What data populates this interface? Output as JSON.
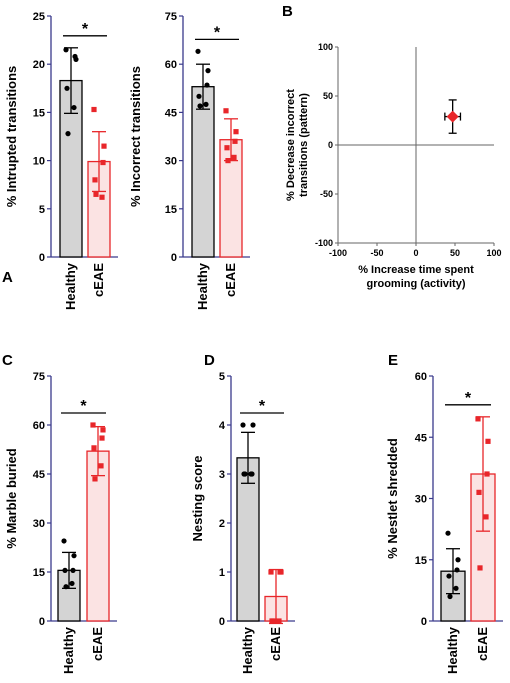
{
  "colors": {
    "healthy_fill": "#d4d4d4",
    "healthy_stroke": "#000000",
    "ceae_fill": "#fbe3e3",
    "ceae_stroke": "#e8262a",
    "axis": "#3a3a8c"
  },
  "chart_data": [
    {
      "id": "A1",
      "panel_letter": "A",
      "type": "bar",
      "ylabel": "% Intrupted transitions",
      "ylim": [
        0,
        25
      ],
      "yticks": [
        0,
        5,
        10,
        15,
        20,
        25
      ],
      "categories": [
        "Healthy",
        "cEAE"
      ],
      "values": [
        18.3,
        9.9
      ],
      "errors": [
        3.4,
        3.1
      ],
      "points": [
        [
          21.5,
          20.5,
          20.8,
          17.5,
          15.5,
          12.8
        ],
        [
          15.3,
          11.5,
          9.8,
          8.0,
          6.2,
          6.5
        ]
      ],
      "significance": "*"
    },
    {
      "id": "A2",
      "panel_letter": "",
      "type": "bar",
      "ylabel": "% Incorrect transitions",
      "ylim": [
        0,
        75
      ],
      "yticks": [
        0,
        15,
        30,
        45,
        60,
        75
      ],
      "categories": [
        "Healthy",
        "cEAE"
      ],
      "values": [
        53.0,
        36.5
      ],
      "errors": [
        7.0,
        6.5
      ],
      "points": [
        [
          64.0,
          58.0,
          53.5,
          50.0,
          47.5,
          47.0
        ],
        [
          45.5,
          39.0,
          36.0,
          34.0,
          31.0,
          30.0
        ]
      ],
      "significance": "*"
    },
    {
      "id": "B",
      "panel_letter": "B",
      "type": "scatter",
      "xlabel": "% Increase time spent grooming (activity)",
      "ylabel": "% Decrease incorrect transitions (pattern)",
      "xlim": [
        -100,
        100
      ],
      "ylim": [
        -100,
        100
      ],
      "xticks": [
        -100,
        -50,
        0,
        50,
        100
      ],
      "yticks": [
        -100,
        -50,
        0,
        50,
        100
      ],
      "point": {
        "x": 47,
        "y": 29,
        "xerr": 10,
        "yerr": 17
      }
    },
    {
      "id": "C",
      "panel_letter": "C",
      "type": "bar",
      "ylabel": "% Marble buried",
      "ylim": [
        0,
        75
      ],
      "yticks": [
        0,
        15,
        30,
        45,
        60,
        75
      ],
      "categories": [
        "Healthy",
        "cEAE"
      ],
      "values": [
        15.5,
        52.0
      ],
      "errors": [
        5.5,
        7.5
      ],
      "points": [
        [
          24.5,
          20.0,
          15.5,
          15.5,
          11.5,
          10.5
        ],
        [
          60.0,
          58.5,
          56.0,
          53.0,
          47.5,
          43.5
        ]
      ],
      "significance": "*"
    },
    {
      "id": "D",
      "panel_letter": "D",
      "type": "bar",
      "ylabel": "Nesting score",
      "ylim": [
        0,
        5
      ],
      "yticks": [
        0,
        1,
        2,
        3,
        4,
        5
      ],
      "categories": [
        "Healthy",
        "cEAE"
      ],
      "values": [
        3.33,
        0.5
      ],
      "errors": [
        0.52,
        0.55
      ],
      "points": [
        [
          4.0,
          4.0,
          3.0,
          3.0,
          3.0,
          3.0
        ],
        [
          1.0,
          1.0,
          1.0,
          0.0,
          0.0,
          0.0
        ]
      ],
      "significance": "*"
    },
    {
      "id": "E",
      "panel_letter": "E",
      "type": "bar",
      "ylabel": "% Nestlet shredded",
      "ylim": [
        0,
        60
      ],
      "yticks": [
        0,
        15,
        30,
        45,
        60
      ],
      "categories": [
        "Healthy",
        "cEAE"
      ],
      "values": [
        12.2,
        36.0
      ],
      "errors": [
        5.5,
        14.0
      ],
      "points": [
        [
          21.5,
          15.0,
          12.5,
          11.0,
          8.0,
          6.0
        ],
        [
          49.5,
          44.0,
          36.0,
          31.5,
          25.5,
          13.0
        ]
      ],
      "significance": "*"
    }
  ]
}
